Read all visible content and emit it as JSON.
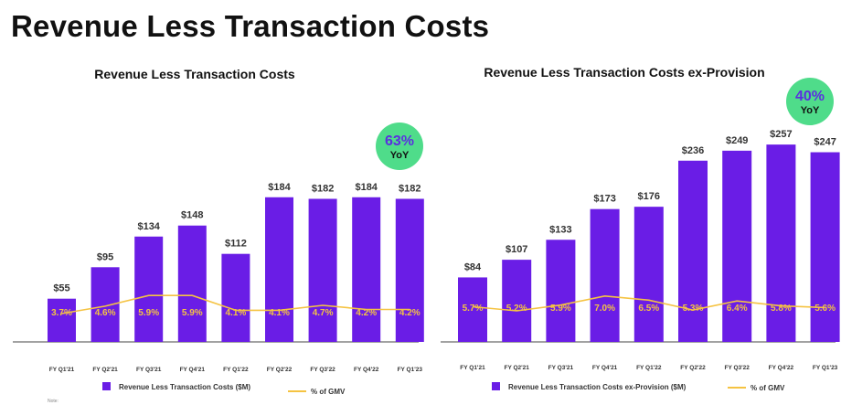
{
  "page": {
    "title": "Revenue Less Transaction Costs",
    "note": "Note:"
  },
  "colors": {
    "bar": "#6a1de6",
    "line": "#f5c342",
    "badge": "#4fdc8a",
    "badge_text": "#5b2ee0",
    "axis": "#444444"
  },
  "chart_data": [
    {
      "type": "bar",
      "title": "Revenue Less Transaction Costs",
      "categories": [
        "FY Q1'21",
        "FY Q2'21",
        "FY Q3'21",
        "FY Q4'21",
        "FY Q1'22",
        "FY Q2'22",
        "FY Q3'22",
        "FY Q4'22",
        "FY Q1'23"
      ],
      "series": [
        {
          "name": "Revenue Less Transaction Costs ($M)",
          "kind": "bar",
          "values": [
            55,
            95,
            134,
            148,
            112,
            184,
            182,
            184,
            182
          ],
          "labels": [
            "$55",
            "$95",
            "$134",
            "$148",
            "$112",
            "$184",
            "$182",
            "$184",
            "$182"
          ]
        },
        {
          "name": "% of GMV",
          "kind": "line",
          "values": [
            3.7,
            4.6,
            5.9,
            5.9,
            4.1,
            4.1,
            4.7,
            4.2,
            4.2
          ],
          "labels": [
            "3.7%",
            "4.6%",
            "5.9%",
            "5.9%",
            "4.1%",
            "4.1%",
            "4.7%",
            "4.2%",
            "4.2%"
          ]
        }
      ],
      "badge": {
        "value": "63%",
        "label": "YoY"
      },
      "legend": "bottom-center",
      "ylim": [
        0,
        200
      ]
    },
    {
      "type": "bar",
      "title": "Revenue Less Transaction Costs ex-Provision",
      "categories": [
        "FY Q1'21",
        "FY Q2'21",
        "FY Q3'21",
        "FY Q4'21",
        "FY Q1'22",
        "FY Q2'22",
        "FY Q3'22",
        "FY Q4'22",
        "FY Q1'23"
      ],
      "series": [
        {
          "name": "Revenue Less Transaction Costs ex-Provision ($M)",
          "kind": "bar",
          "values": [
            84,
            107,
            133,
            173,
            176,
            236,
            249,
            257,
            247
          ],
          "labels": [
            "$84",
            "$107",
            "$133",
            "$173",
            "$176",
            "$236",
            "$249",
            "$257",
            "$247"
          ]
        },
        {
          "name": "% of GMV",
          "kind": "line",
          "values": [
            5.7,
            5.2,
            5.9,
            7.0,
            6.5,
            5.3,
            6.4,
            5.8,
            5.6
          ],
          "labels": [
            "5.7%",
            "5.2%",
            "5.9%",
            "7.0%",
            "6.5%",
            "5.3%",
            "6.4%",
            "5.8%",
            "5.6%"
          ]
        }
      ],
      "badge": {
        "value": "40%",
        "label": "YoY"
      },
      "legend": "bottom-center",
      "ylim": [
        0,
        270
      ]
    }
  ]
}
